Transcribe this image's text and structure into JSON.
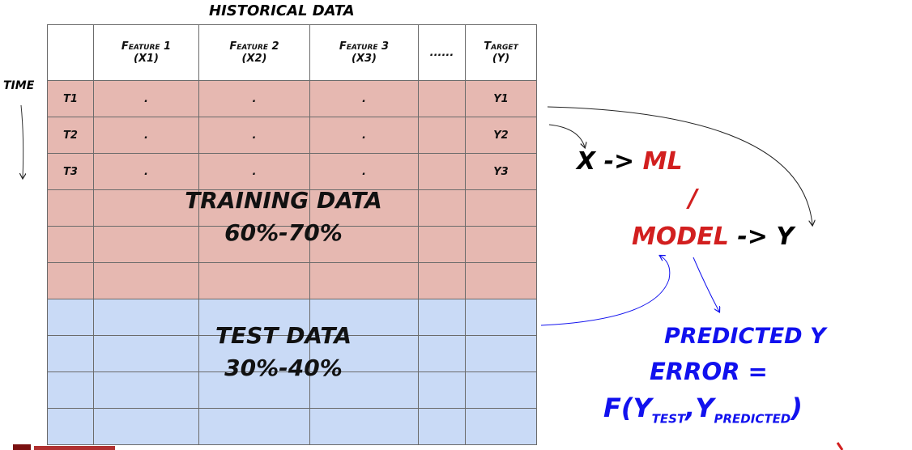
{
  "title": "HISTORICAL DATA",
  "time_label": "TIME",
  "table": {
    "headers": [
      "",
      "Feature 1\n(X1)",
      "Feature 2\n(X2)",
      "Feature 3\n(X3)",
      "......",
      "Target\n(Y)"
    ],
    "rows": [
      [
        "T1",
        ".",
        ".",
        ".",
        "",
        "Y1"
      ],
      [
        "T2",
        ".",
        ".",
        ".",
        "",
        "Y2"
      ],
      [
        "T3",
        ".",
        ".",
        ".",
        "",
        "Y3"
      ]
    ]
  },
  "training": {
    "label": "TRAINING DATA",
    "pct": "60%-70%",
    "color": "#e6b8b1"
  },
  "test": {
    "label": "TEST DATA",
    "pct": "30%-40%",
    "color": "#c9daf6"
  },
  "flow": {
    "x": "X ->",
    "ml": "ML",
    "slash": "/",
    "model": "MODEL",
    "y": "-> Y"
  },
  "predicted": "PREDICTED Y",
  "error": "ERROR =",
  "formula": {
    "f": "F(Y",
    "test": "TEST",
    "comma": ",",
    "y2": "Y",
    "pred": "PREDICTED",
    "close": ")"
  }
}
